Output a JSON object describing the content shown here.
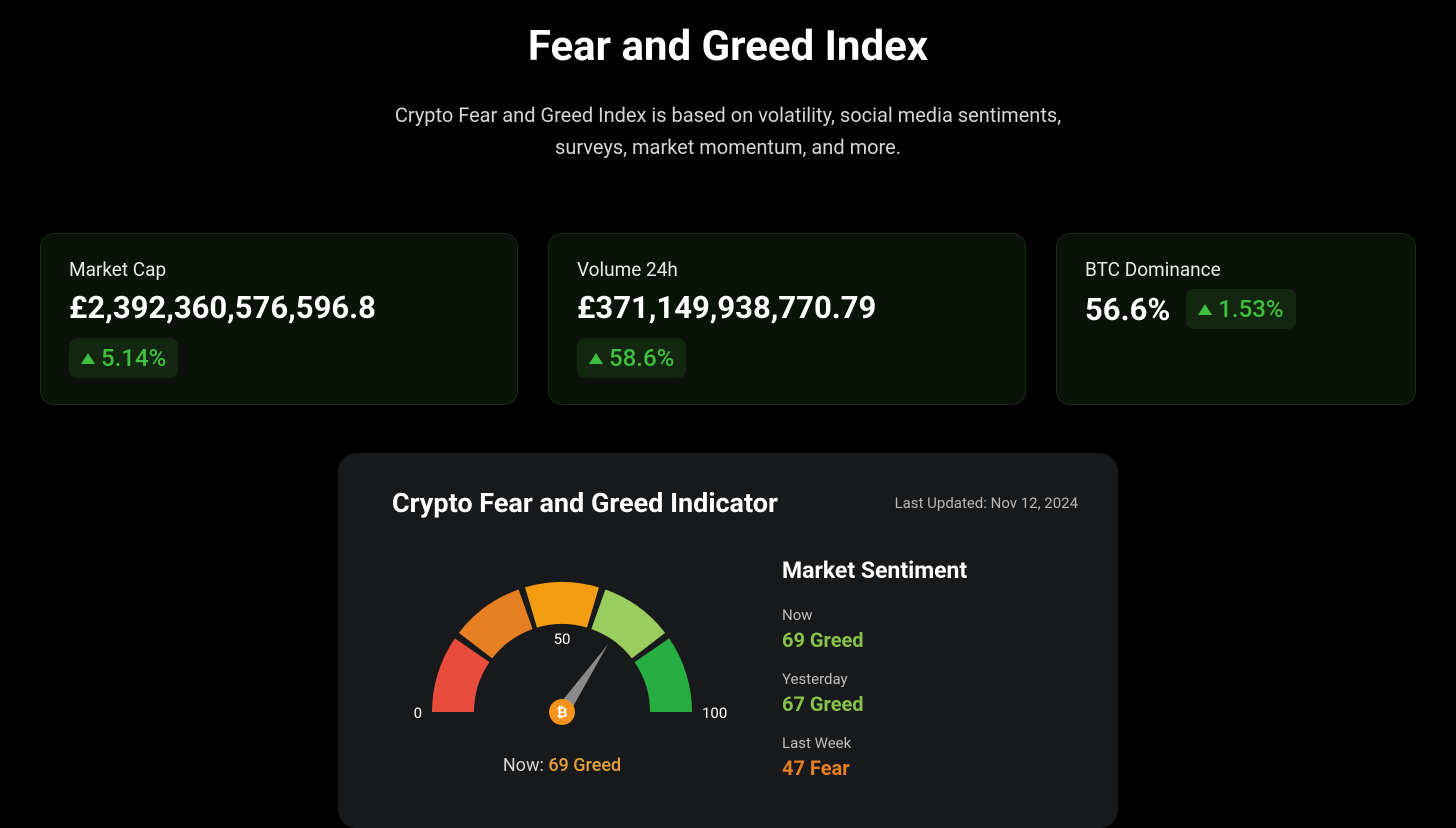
{
  "page": {
    "title": "Fear and Greed Index",
    "subtitle": "Crypto Fear and Greed Index is based on volatility, social media sentiments, surveys, market momentum, and more."
  },
  "stats": {
    "market_cap": {
      "label": "Market Cap",
      "value": "£2,392,360,576,596.8",
      "change": "5.14%"
    },
    "volume_24h": {
      "label": "Volume 24h",
      "value": "£371,149,938,770.79",
      "change": "58.6%"
    },
    "btc_dominance": {
      "label": "BTC Dominance",
      "value": "56.6%",
      "change": "1.53%"
    }
  },
  "indicator": {
    "title": "Crypto Fear and Greed Indicator",
    "updated": "Last Updated: Nov 12, 2024",
    "gauge": {
      "value": 69,
      "min_label": "0",
      "mid_label": "50",
      "max_label": "100",
      "now_prefix": "Now: ",
      "now_value": "69 Greed",
      "segment_colors": [
        "#e74c3c",
        "#e67e22",
        "#f39c12",
        "#9acd5e",
        "#27ae43"
      ],
      "needle_color": "#8a8a8a",
      "hub_icon_bg": "#f7931a"
    },
    "sentiment": {
      "title": "Market Sentiment",
      "items": [
        {
          "label": "Now",
          "value": "69 Greed",
          "tone": "greed"
        },
        {
          "label": "Yesterday",
          "value": "67 Greed",
          "tone": "greed"
        },
        {
          "label": "Last Week",
          "value": "47 Fear",
          "tone": "fear"
        }
      ]
    }
  }
}
